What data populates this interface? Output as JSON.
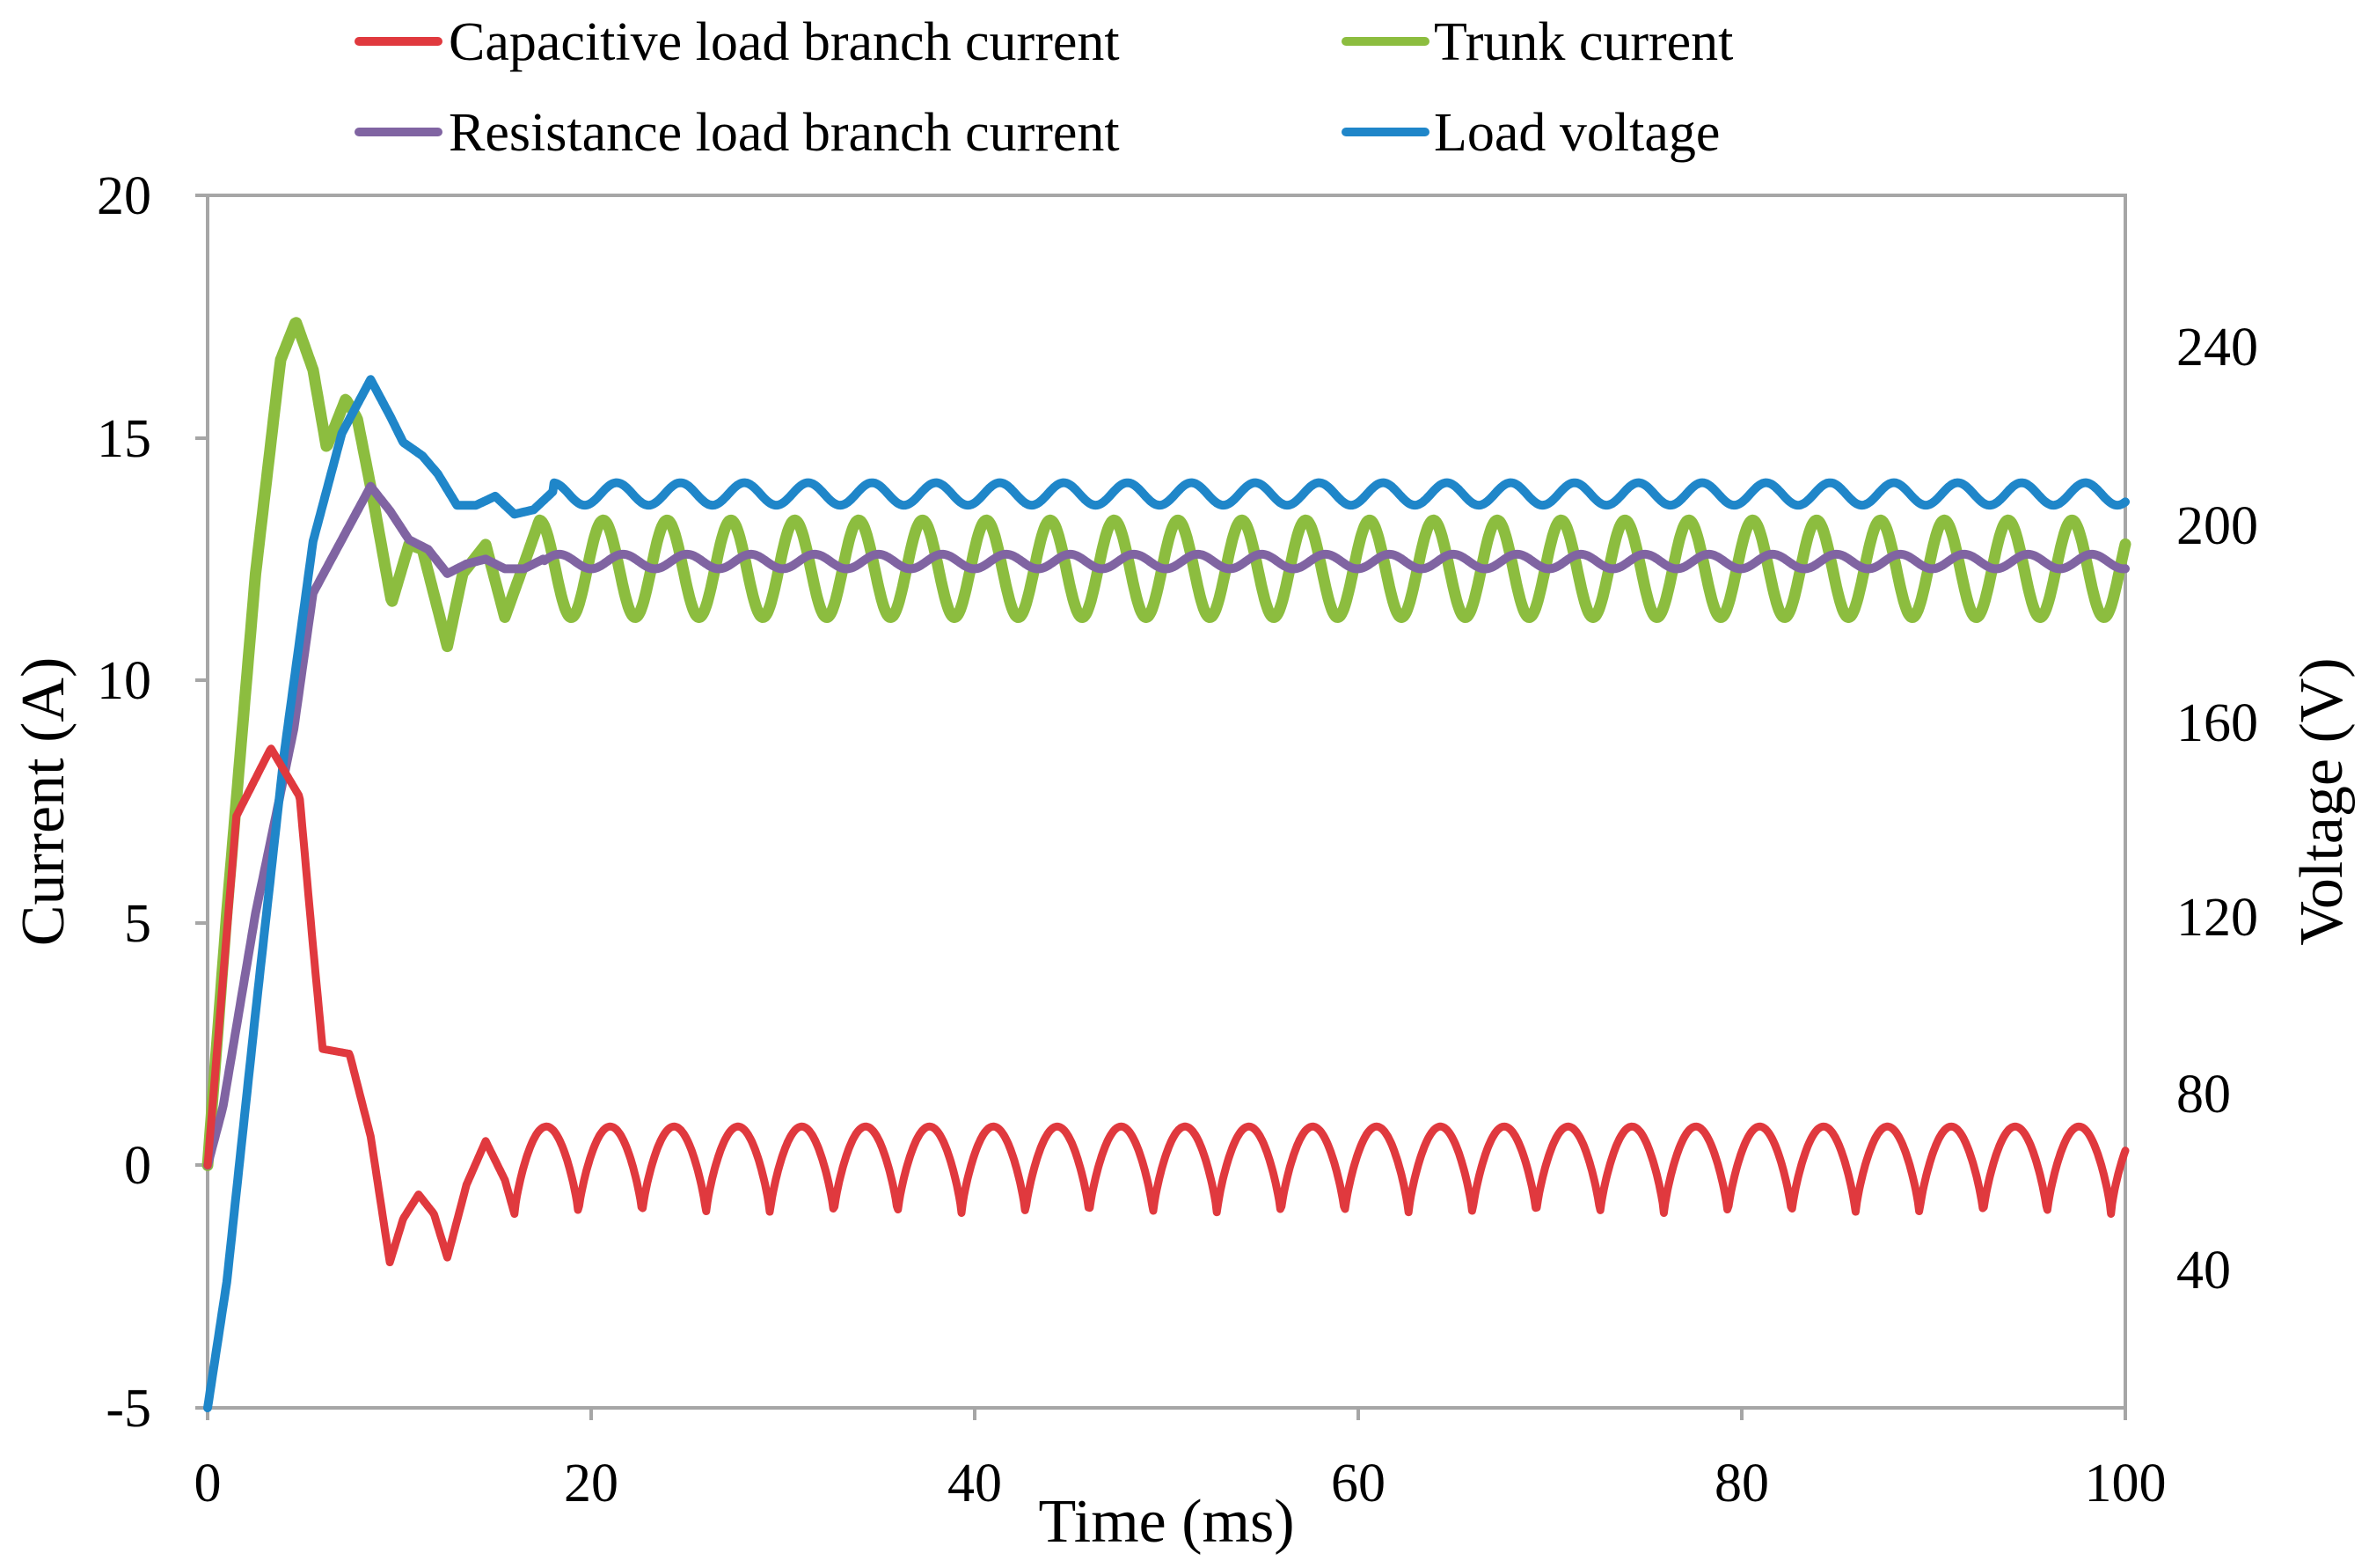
{
  "chart_data": {
    "type": "line",
    "title": "",
    "xlabel": "Time (ms)",
    "ylabel": "Current (A)",
    "y2label": "Voltage (V)",
    "xlim": [
      0,
      100
    ],
    "ylim": [
      -5,
      20
    ],
    "y2lim": [
      10,
      280
    ],
    "x_ticks": [
      "0",
      "20",
      "40",
      "60",
      "80",
      "100"
    ],
    "y_ticks": [
      "-5",
      "0",
      "5",
      "10",
      "15",
      "20"
    ],
    "y2_ticks": [
      "40",
      "80",
      "120",
      "160",
      "200",
      "240"
    ],
    "grid": false,
    "legend_position": "top",
    "series": [
      {
        "name": "Capacitive load branch current",
        "color": "#e0393e",
        "axis": "left",
        "shape": "capacitive",
        "peak": {
          "x": 3.3,
          "y": 8.6
        },
        "steady_max": 0.8,
        "steady_min": -1.0,
        "period_ms": 3.33
      },
      {
        "name": "Trunk current",
        "color": "#8cbd3f",
        "axis": "left",
        "shape": "trunk",
        "peak": {
          "x": 4.6,
          "y": 17.4
        },
        "steady_max": 13.3,
        "steady_min": 11.3,
        "period_ms": 3.33
      },
      {
        "name": "Resistance load branch current",
        "color": "#8064a2",
        "axis": "left",
        "shape": "resistive",
        "peak": {
          "x": 8.5,
          "y": 14.0
        },
        "steady_max": 12.6,
        "steady_min": 12.3,
        "period_ms": 3.33
      },
      {
        "name": "Load voltage",
        "color": "#1f86c9",
        "axis": "right",
        "shape": "voltage",
        "peak": {
          "x": 8.5,
          "y": 239
        },
        "steady_max": 216,
        "steady_min": 211,
        "period_ms": 3.33
      }
    ]
  }
}
